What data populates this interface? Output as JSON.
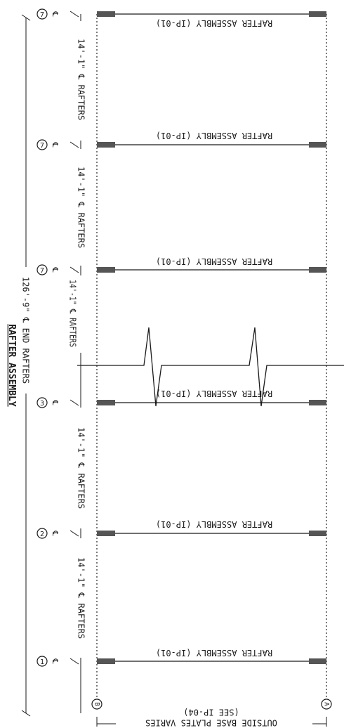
{
  "title": "RAFTER ASSEMBLY",
  "overall_dimension": "126'-9\" ℄ END RAFTERS",
  "rafter_label": "RAFTER ASSEMBLY (IP-01)",
  "rafters": [
    {
      "bubble": "1",
      "cl": "℄"
    },
    {
      "bubble": "2",
      "cl": "℄"
    },
    {
      "bubble": "3",
      "cl": "℄"
    },
    {
      "bubble": "7",
      "cl": "℄"
    },
    {
      "bubble": "7",
      "cl": "℄"
    },
    {
      "bubble": "7",
      "cl": "℄"
    }
  ],
  "spacing_dimensions": [
    "14'-1\" ℄ RAFTERS",
    "14'-1\" ℄ RAFTERS",
    "14'-1\" ℄ RAFTERS",
    "14'-1\" ℄ RAFTERS",
    "14'-1\" ℄ RAFTERS"
  ],
  "gridlines": {
    "left": "B",
    "right": "A"
  },
  "base_plate_note_line1": "OUTSIDE BASE PLATES VARIES",
  "base_plate_note_line2": "(SEE IP-04)"
}
